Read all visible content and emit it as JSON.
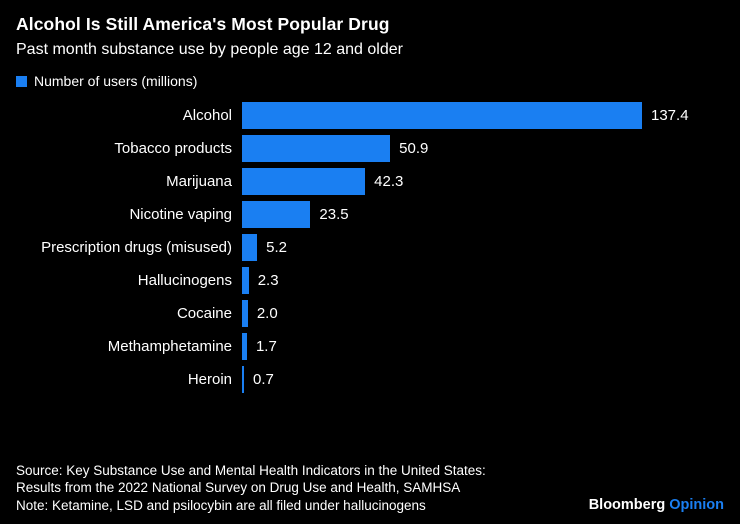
{
  "header": {
    "title": "Alcohol Is Still America's Most Popular Drug",
    "subtitle": "Past month substance use by people age 12 and older"
  },
  "legend": {
    "label": "Number of users (millions)",
    "color": "#1a7ff2"
  },
  "chart_data": {
    "type": "bar",
    "orientation": "horizontal",
    "title": "Alcohol Is Still America's Most Popular Drug",
    "subtitle": "Past month substance use by people age 12 and older",
    "legend_label": "Number of users (millions)",
    "legend_position": "top-left",
    "categories": [
      "Alcohol",
      "Tobacco products",
      "Marijuana",
      "Nicotine vaping",
      "Prescription drugs (misused)",
      "Hallucinogens",
      "Cocaine",
      "Methamphetamine",
      "Heroin"
    ],
    "values": [
      137.4,
      50.9,
      42.3,
      23.5,
      5.2,
      2.3,
      2.0,
      1.7,
      0.7
    ],
    "value_labels": [
      "137.4",
      "50.9",
      "42.3",
      "23.5",
      "5.2",
      "2.3",
      "2.0",
      "1.7",
      "0.7"
    ],
    "xlabel": "",
    "ylabel": "",
    "xlim": [
      0,
      140
    ],
    "grid": false,
    "bar_color": "#1a7ff2",
    "background_color": "#000000",
    "text_color": "#ffffff"
  },
  "footer": {
    "source_line1": "Source: Key Substance Use and Mental Health Indicators in the United States:",
    "source_line2": "Results from the 2022 National Survey on Drug Use and Health, SAMHSA",
    "note": "Note: Ketamine, LSD and psilocybin are all filed under hallucinogens",
    "brand": "Bloomberg",
    "brand_suffix": "Opinion",
    "brand_suffix_color": "#1a7ff2"
  }
}
